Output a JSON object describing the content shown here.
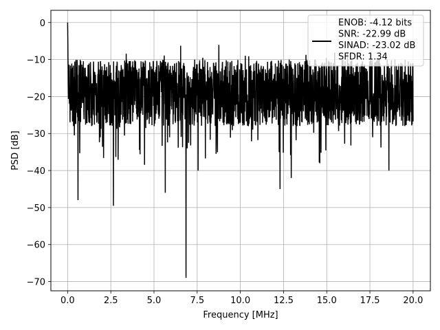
{
  "chart_data": {
    "type": "line",
    "title": "",
    "xlabel": "Frequency [MHz]",
    "ylabel": "PSD [dB]",
    "xlim": [
      -0.97,
      21.0
    ],
    "ylim": [
      -72.5,
      3.3
    ],
    "xticks": [
      0.0,
      2.5,
      5.0,
      7.5,
      10.0,
      12.5,
      15.0,
      17.5,
      20.0
    ],
    "xtick_labels": [
      "0.0",
      "2.5",
      "5.0",
      "7.5",
      "10.0",
      "12.5",
      "15.0",
      "17.5",
      "20.0"
    ],
    "yticks": [
      0,
      -10,
      -20,
      -30,
      -40,
      -50,
      -60,
      -70
    ],
    "ytick_labels": [
      "0",
      "−10",
      "−20",
      "−30",
      "−40",
      "−50",
      "−60",
      "−70"
    ],
    "grid": true,
    "legend_placement": "top-right",
    "series": [
      {
        "name": "ENOB: -4.12 bits\nSNR: -22.99 dB\nSINAD: -23.02 dB\nSFDR: 1.34",
        "color": "#000000",
        "x_range": [
          0.0,
          20.0
        ],
        "points": 2000,
        "body_range_db": [
          -28,
          -10
        ],
        "peak": {
          "x": 0.0,
          "y": 0.0
        },
        "notable_dips": [
          {
            "x": 0.6,
            "y": -48.0
          },
          {
            "x": 2.65,
            "y": -49.5
          },
          {
            "x": 5.65,
            "y": -46.0
          },
          {
            "x": 6.85,
            "y": -69.0
          },
          {
            "x": 7.55,
            "y": -40.0
          },
          {
            "x": 12.3,
            "y": -45.0
          },
          {
            "x": 12.95,
            "y": -42.0
          },
          {
            "x": 18.6,
            "y": -40.0
          }
        ]
      }
    ]
  }
}
